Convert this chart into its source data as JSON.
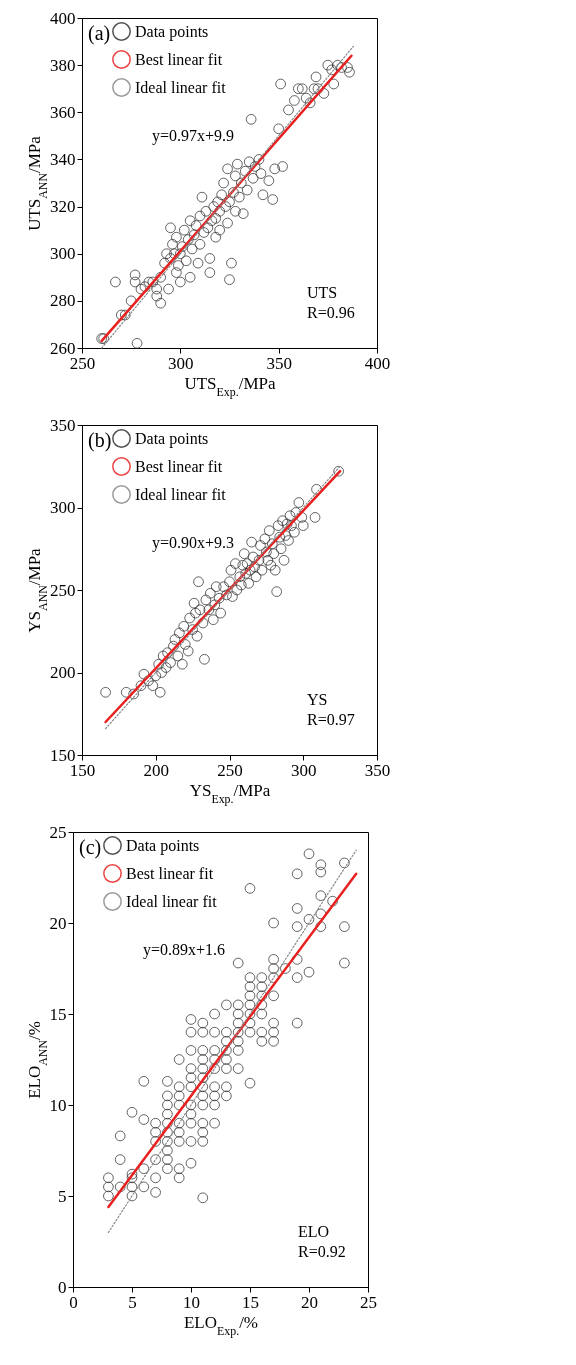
{
  "chart_data": [
    {
      "type": "scatter",
      "xlabel": "UTS$_{Exp.}$/MPa",
      "ylabel": "UTS$_{ANN}$/MPa",
      "xlim": [
        250,
        400
      ],
      "xticks": [
        250,
        300,
        350,
        400
      ],
      "ylim": [
        260,
        400
      ],
      "yticks": [
        260,
        280,
        300,
        320,
        340,
        360,
        380,
        400
      ],
      "grid": false,
      "legend": "top left",
      "annotations": [
        "(a)",
        "y=0.97x+9.9",
        "UTS",
        "R=0.96"
      ],
      "series": [
        {
          "name": "Data points",
          "color": "#333333",
          "marker": "circle",
          "x": [
            260,
            261,
            267,
            270,
            272,
            275,
            277,
            277,
            278,
            280,
            282,
            284,
            286,
            288,
            288,
            290,
            290,
            292,
            293,
            294,
            295,
            295,
            296,
            297,
            298,
            298,
            299,
            300,
            300,
            301,
            302,
            303,
            304,
            305,
            305,
            306,
            307,
            308,
            309,
            310,
            310,
            311,
            312,
            313,
            314,
            315,
            315,
            316,
            317,
            318,
            318,
            319,
            320,
            320,
            321,
            322,
            323,
            324,
            324,
            325,
            325,
            326,
            327,
            328,
            328,
            329,
            330,
            331,
            332,
            333,
            334,
            335,
            336,
            337,
            338,
            340,
            341,
            342,
            345,
            347,
            348,
            350,
            351,
            352,
            355,
            358,
            360,
            362,
            364,
            366,
            368,
            369,
            370,
            373,
            375,
            377,
            378,
            380,
            382,
            385,
            386
          ],
          "values": [
            264,
            264,
            288,
            274,
            274,
            280,
            291,
            288,
            262,
            285,
            286,
            288,
            288,
            285,
            282,
            279,
            290,
            296,
            300,
            285,
            298,
            311,
            304,
            300,
            292,
            307,
            295,
            300,
            288,
            303,
            310,
            297,
            306,
            290,
            314,
            302,
            308,
            312,
            296,
            316,
            304,
            324,
            309,
            318,
            311,
            298,
            292,
            314,
            320,
            315,
            307,
            322,
            318,
            310,
            325,
            330,
            320,
            313,
            336,
            322,
            289,
            296,
            326,
            333,
            318,
            338,
            324,
            330,
            317,
            335,
            327,
            339,
            357,
            332,
            337,
            340,
            334,
            325,
            331,
            323,
            336,
            353,
            372,
            337,
            361,
            365,
            370,
            370,
            366,
            364,
            370,
            375,
            370,
            368,
            380,
            378,
            372,
            380,
            379,
            379,
            377
          ]
        },
        {
          "name": "Best linear fit",
          "color": "#e8201f",
          "type": "line",
          "x": [
            260,
            387
          ],
          "values": [
            263,
            384
          ]
        },
        {
          "name": "Ideal linear fit",
          "color": "#888888",
          "type": "line",
          "line_style": "dotted",
          "x": [
            260,
            388
          ],
          "values": [
            260,
            388
          ]
        }
      ]
    },
    {
      "type": "scatter",
      "xlabel": "YS$_{Exp.}$/MPa",
      "ylabel": "YS$_{ANN}$/MPa",
      "xlim": [
        150,
        350
      ],
      "xticks": [
        150,
        200,
        250,
        300,
        350
      ],
      "ylim": [
        150,
        350
      ],
      "yticks": [
        150,
        200,
        250,
        300,
        350
      ],
      "grid": false,
      "legend": "top left",
      "annotations": [
        "(b)",
        "y=0.90x+9.3",
        "YS",
        "R=0.97"
      ],
      "series": [
        {
          "name": "Data points",
          "color": "#333333",
          "marker": "circle",
          "x": [
            166,
            180,
            185,
            190,
            192,
            195,
            198,
            200,
            202,
            203,
            204,
            205,
            207,
            208,
            210,
            212,
            213,
            215,
            216,
            218,
            219,
            220,
            222,
            223,
            225,
            226,
            227,
            228,
            229,
            230,
            232,
            233,
            234,
            236,
            237,
            239,
            240,
            241,
            243,
            244,
            246,
            248,
            250,
            251,
            252,
            254,
            255,
            257,
            258,
            259,
            260,
            261,
            262,
            263,
            264,
            265,
            266,
            267,
            268,
            270,
            271,
            272,
            274,
            275,
            276,
            277,
            278,
            279,
            280,
            281,
            282,
            283,
            284,
            285,
            286,
            287,
            288,
            289,
            290,
            291,
            292,
            294,
            295,
            297,
            299,
            300,
            308,
            309,
            324
          ],
          "values": [
            188,
            188,
            187,
            192,
            199,
            195,
            192,
            198,
            205,
            188,
            200,
            210,
            203,
            212,
            206,
            216,
            220,
            210,
            224,
            205,
            228,
            217,
            213,
            233,
            226,
            242,
            236,
            222,
            255,
            238,
            230,
            208,
            244,
            238,
            248,
            232,
            241,
            252,
            245,
            236,
            252,
            247,
            255,
            262,
            246,
            266,
            250,
            258,
            253,
            265,
            272,
            260,
            266,
            254,
            262,
            279,
            270,
            264,
            258,
            268,
            277,
            262,
            281,
            273,
            268,
            286,
            265,
            278,
            272,
            262,
            249,
            289,
            282,
            275,
            292,
            268,
            283,
            290,
            280,
            295,
            289,
            285,
            297,
            303,
            294,
            289,
            294,
            311,
            322
          ]
        },
        {
          "name": "Best linear fit",
          "color": "#e8201f",
          "type": "line",
          "x": [
            166,
            325
          ],
          "values": [
            170,
            322
          ]
        },
        {
          "name": "Ideal linear fit",
          "color": "#888888",
          "type": "line",
          "line_style": "dotted",
          "x": [
            166,
            325
          ],
          "values": [
            166,
            325
          ]
        }
      ]
    },
    {
      "type": "scatter",
      "xlabel": "ELO$_{Exp.}$/%",
      "ylabel": "ELO$_{ANN}$/%",
      "xlim": [
        0,
        25
      ],
      "xticks": [
        0,
        5,
        10,
        15,
        20,
        25
      ],
      "ylim": [
        0,
        25
      ],
      "yticks": [
        0,
        5,
        10,
        15,
        20,
        25
      ],
      "grid": false,
      "legend": "top left",
      "annotations": [
        "(c)",
        "y=0.89x+1.6",
        "ELO",
        "R=0.92"
      ],
      "series": [
        {
          "name": "Data points",
          "color": "#333333",
          "marker": "circle",
          "x": [
            3,
            3,
            3,
            4,
            4,
            4,
            5,
            5,
            5,
            5,
            5,
            6,
            6,
            6,
            6,
            7,
            7,
            7,
            7,
            7,
            7,
            8,
            8,
            8,
            8,
            8,
            8,
            8,
            8,
            8,
            8,
            9,
            9,
            9,
            9,
            9,
            9,
            9,
            9,
            9,
            10,
            10,
            10,
            10,
            10,
            10,
            10,
            10,
            10,
            10,
            10,
            11,
            11,
            11,
            11,
            11,
            11,
            11,
            11,
            11,
            11,
            11,
            11,
            11,
            12,
            12,
            12,
            12,
            12,
            12,
            12,
            12,
            12,
            13,
            13,
            13,
            13,
            13,
            13,
            13,
            13,
            14,
            14,
            14,
            14,
            14,
            14,
            14,
            14,
            15,
            15,
            15,
            15,
            15,
            15,
            15,
            15,
            15,
            16,
            16,
            16,
            16,
            16,
            16,
            16,
            17,
            17,
            17,
            17,
            17,
            17,
            17,
            17,
            18,
            19,
            19,
            19,
            19,
            19,
            19,
            20,
            20,
            20,
            21,
            21,
            21,
            21,
            21,
            22,
            23,
            23,
            23
          ],
          "values": [
            5,
            5.5,
            6,
            5.5,
            7,
            8.3,
            5,
            5.5,
            6,
            6.2,
            9.6,
            5.5,
            6.5,
            9.2,
            11.3,
            5.2,
            6,
            7,
            8,
            8.5,
            9,
            6.5,
            7,
            7.5,
            8,
            8.5,
            9,
            9.5,
            10,
            10.5,
            11.3,
            6,
            6.5,
            8,
            8.5,
            9,
            10,
            10.5,
            11,
            12.5,
            6.8,
            8,
            9,
            9.5,
            10,
            11,
            11.5,
            12,
            13,
            14,
            14.7,
            4.9,
            8,
            8.5,
            9,
            10,
            10.5,
            11,
            11.5,
            12,
            12.5,
            13,
            14,
            14.5,
            9,
            10,
            10.5,
            11,
            12,
            12.5,
            13,
            14,
            15,
            10.5,
            11,
            12,
            12.5,
            13,
            13.5,
            14,
            15.5,
            12,
            13,
            13.5,
            14,
            14.5,
            15,
            15.5,
            17.8,
            11.2,
            14,
            14.5,
            15,
            15.5,
            16,
            16.5,
            17,
            21.9,
            13.5,
            14,
            15,
            15.5,
            16,
            16.5,
            17,
            13.5,
            14,
            14.5,
            16,
            17,
            17.5,
            18,
            20,
            17.5,
            14.5,
            17,
            18,
            19.8,
            20.8,
            22.7,
            17.3,
            20.2,
            23.8,
            19.8,
            20.5,
            21.5,
            22.8,
            23.2,
            21.2,
            17.8,
            19.8,
            23.3
          ]
        },
        {
          "name": "Best linear fit",
          "color": "#e8201f",
          "type": "line",
          "x": [
            3,
            24
          ],
          "values": [
            4.4,
            22.7
          ]
        },
        {
          "name": "Ideal linear fit",
          "color": "#888888",
          "type": "line",
          "line_style": "dotted",
          "x": [
            3,
            24
          ],
          "values": [
            3,
            24
          ]
        }
      ]
    }
  ]
}
